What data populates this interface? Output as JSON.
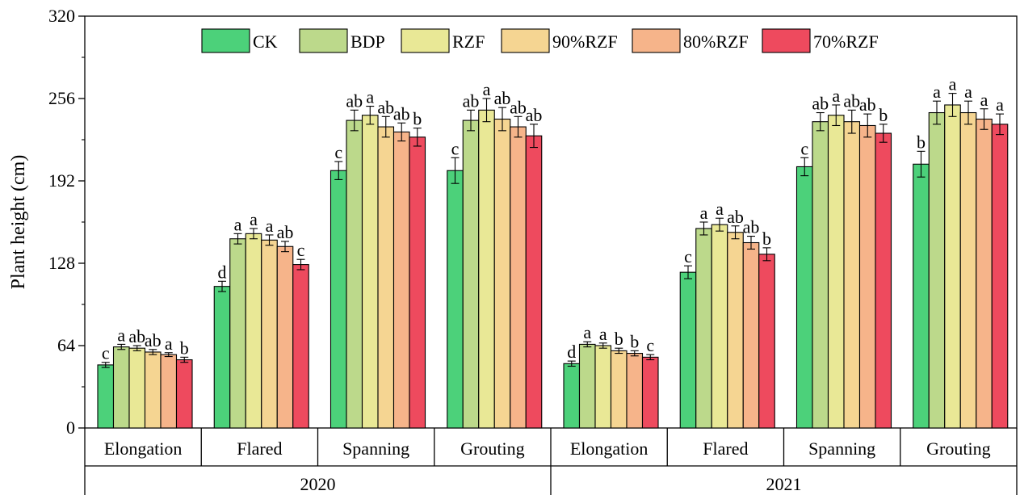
{
  "chart_data": {
    "type": "bar",
    "ylabel": "Plant height (cm)",
    "ylim": [
      0,
      320
    ],
    "yticks": [
      0,
      64,
      128,
      192,
      256,
      320
    ],
    "grid": false,
    "legend_placement": "top",
    "years": [
      "2020",
      "2021"
    ],
    "stages": [
      "Elongation",
      "Flared",
      "Spanning",
      "Grouting"
    ],
    "series": [
      {
        "name": "CK",
        "color": "#4cd17a"
      },
      {
        "name": "BDP",
        "color": "#bcd98b"
      },
      {
        "name": "RZF",
        "color": "#e9e896"
      },
      {
        "name": "90%RZF",
        "color": "#f5d592"
      },
      {
        "name": "80%RZF",
        "color": "#f6b48a"
      },
      {
        "name": "70%RZF",
        "color": "#ee4a5e"
      }
    ],
    "groups": [
      {
        "year": "2020",
        "stage": "Elongation",
        "values": [
          49,
          63,
          62,
          59,
          57,
          53
        ],
        "errors": [
          2,
          2,
          2,
          2,
          1.5,
          2
        ],
        "letters": [
          "c",
          "a",
          "ab",
          "ab",
          "a",
          "b"
        ]
      },
      {
        "year": "2020",
        "stage": "Flared",
        "values": [
          110,
          147,
          151,
          146,
          141,
          127
        ],
        "errors": [
          4,
          4,
          4,
          4,
          4,
          4
        ],
        "letters": [
          "d",
          "a",
          "a",
          "a",
          "ab",
          "c"
        ]
      },
      {
        "year": "2020",
        "stage": "Spanning",
        "values": [
          200,
          239,
          243,
          234,
          230,
          226
        ],
        "errors": [
          7,
          8,
          7,
          8,
          7,
          7
        ],
        "letters": [
          "c",
          "ab",
          "a",
          "ab",
          "ab",
          "b"
        ]
      },
      {
        "year": "2020",
        "stage": "Grouting",
        "values": [
          200,
          239,
          247,
          240,
          234,
          227
        ],
        "errors": [
          10,
          8,
          9,
          9,
          8,
          9
        ],
        "letters": [
          "c",
          "ab",
          "a",
          "ab",
          "ab",
          "ab"
        ]
      },
      {
        "year": "2021",
        "stage": "Elongation",
        "values": [
          50,
          65,
          64,
          60,
          58,
          55
        ],
        "errors": [
          2,
          2,
          2,
          2,
          2,
          2
        ],
        "letters": [
          "d",
          "a",
          "a",
          "b",
          "b",
          "c"
        ]
      },
      {
        "year": "2021",
        "stage": "Flared",
        "values": [
          121,
          155,
          158,
          152,
          144,
          135
        ],
        "errors": [
          5,
          5,
          5,
          5,
          5,
          5
        ],
        "letters": [
          "c",
          "a",
          "a",
          "ab",
          "ab",
          "b"
        ]
      },
      {
        "year": "2021",
        "stage": "Spanning",
        "values": [
          203,
          238,
          243,
          238,
          235,
          229
        ],
        "errors": [
          7,
          7,
          8,
          9,
          9,
          7
        ],
        "letters": [
          "c",
          "ab",
          "a",
          "ab",
          "ab",
          "b"
        ]
      },
      {
        "year": "2021",
        "stage": "Grouting",
        "values": [
          205,
          245,
          251,
          245,
          240,
          236
        ],
        "errors": [
          10,
          9,
          9,
          9,
          8,
          8
        ],
        "letters": [
          "b",
          "a",
          "a",
          "a",
          "a",
          "a"
        ]
      }
    ]
  }
}
